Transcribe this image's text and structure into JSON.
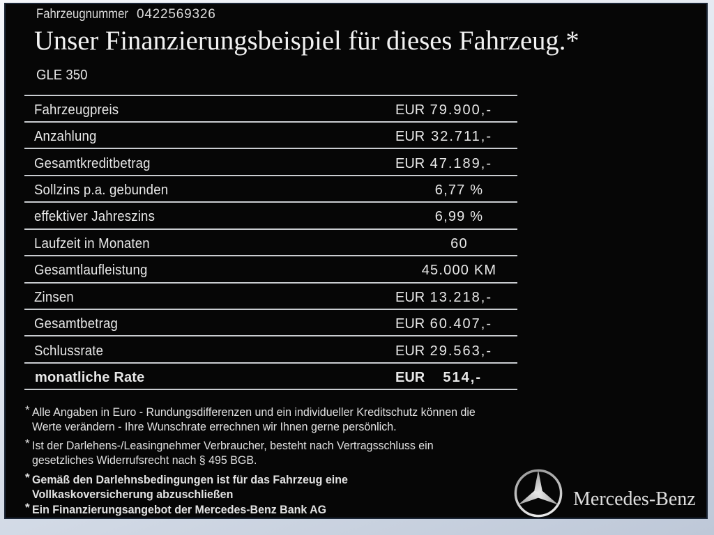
{
  "header": {
    "vehicle_number_label": "Fahrzeugnummer",
    "vehicle_number_value": "0422569326",
    "title": "Unser Finanzierungsbeispiel für dieses Fahrzeug.*",
    "model": "GLE 350"
  },
  "finance_table": {
    "rows": [
      {
        "label": "Fahrzeugpreis",
        "currency": "EUR",
        "value": "79.900,-"
      },
      {
        "label": "Anzahlung",
        "currency": "EUR",
        "value": "32.711,-"
      },
      {
        "label": "Gesamtkreditbetrag",
        "currency": "EUR",
        "value": "47.189,-"
      },
      {
        "label": "Sollzins p.a. gebunden",
        "value": "6,77 %"
      },
      {
        "label": "effektiver Jahreszins",
        "value": "6,99 %"
      },
      {
        "label": "Laufzeit in Monaten",
        "value": "60"
      },
      {
        "label": "Gesamtlaufleistung",
        "value": "45.000 KM"
      },
      {
        "label": "Zinsen",
        "currency": "EUR",
        "value": "13.218,-"
      },
      {
        "label": "Gesamtbetrag",
        "currency": "EUR",
        "value": "60.407,-"
      },
      {
        "label": "Schlussrate",
        "currency": "EUR",
        "value": "29.563,-"
      },
      {
        "label": "monatliche Rate",
        "currency": "EUR",
        "value": "514,-",
        "bold": true
      }
    ]
  },
  "footnotes": [
    {
      "marker": "*",
      "bold": false,
      "lines": [
        "Alle Angaben in Euro - Rundungsdifferenzen und ein individueller Kreditschutz können die",
        "Werte verändern - Ihre Wunschrate errechnen wir Ihnen gerne persönlich."
      ]
    },
    {
      "marker": "*",
      "bold": false,
      "lines": [
        "Ist der Darlehens-/Leasingnehmer Verbraucher, besteht nach Vertragsschluss ein",
        "gesetzliches Widerrufsrecht nach § 495 BGB."
      ]
    },
    {
      "marker": "*",
      "bold": true,
      "lines": [
        "Gemäß den Darlehnsbedingungen ist für das Fahrzeug eine",
        "Vollkaskoversicherung abzuschließen"
      ]
    },
    {
      "marker": "*",
      "bold": true,
      "lines": [
        "Ein Finanzierungsangebot der Mercedes-Benz Bank AG"
      ]
    }
  ],
  "branding": {
    "logo": "mercedes-star-icon",
    "wordmark": "Mercedes-Benz"
  }
}
